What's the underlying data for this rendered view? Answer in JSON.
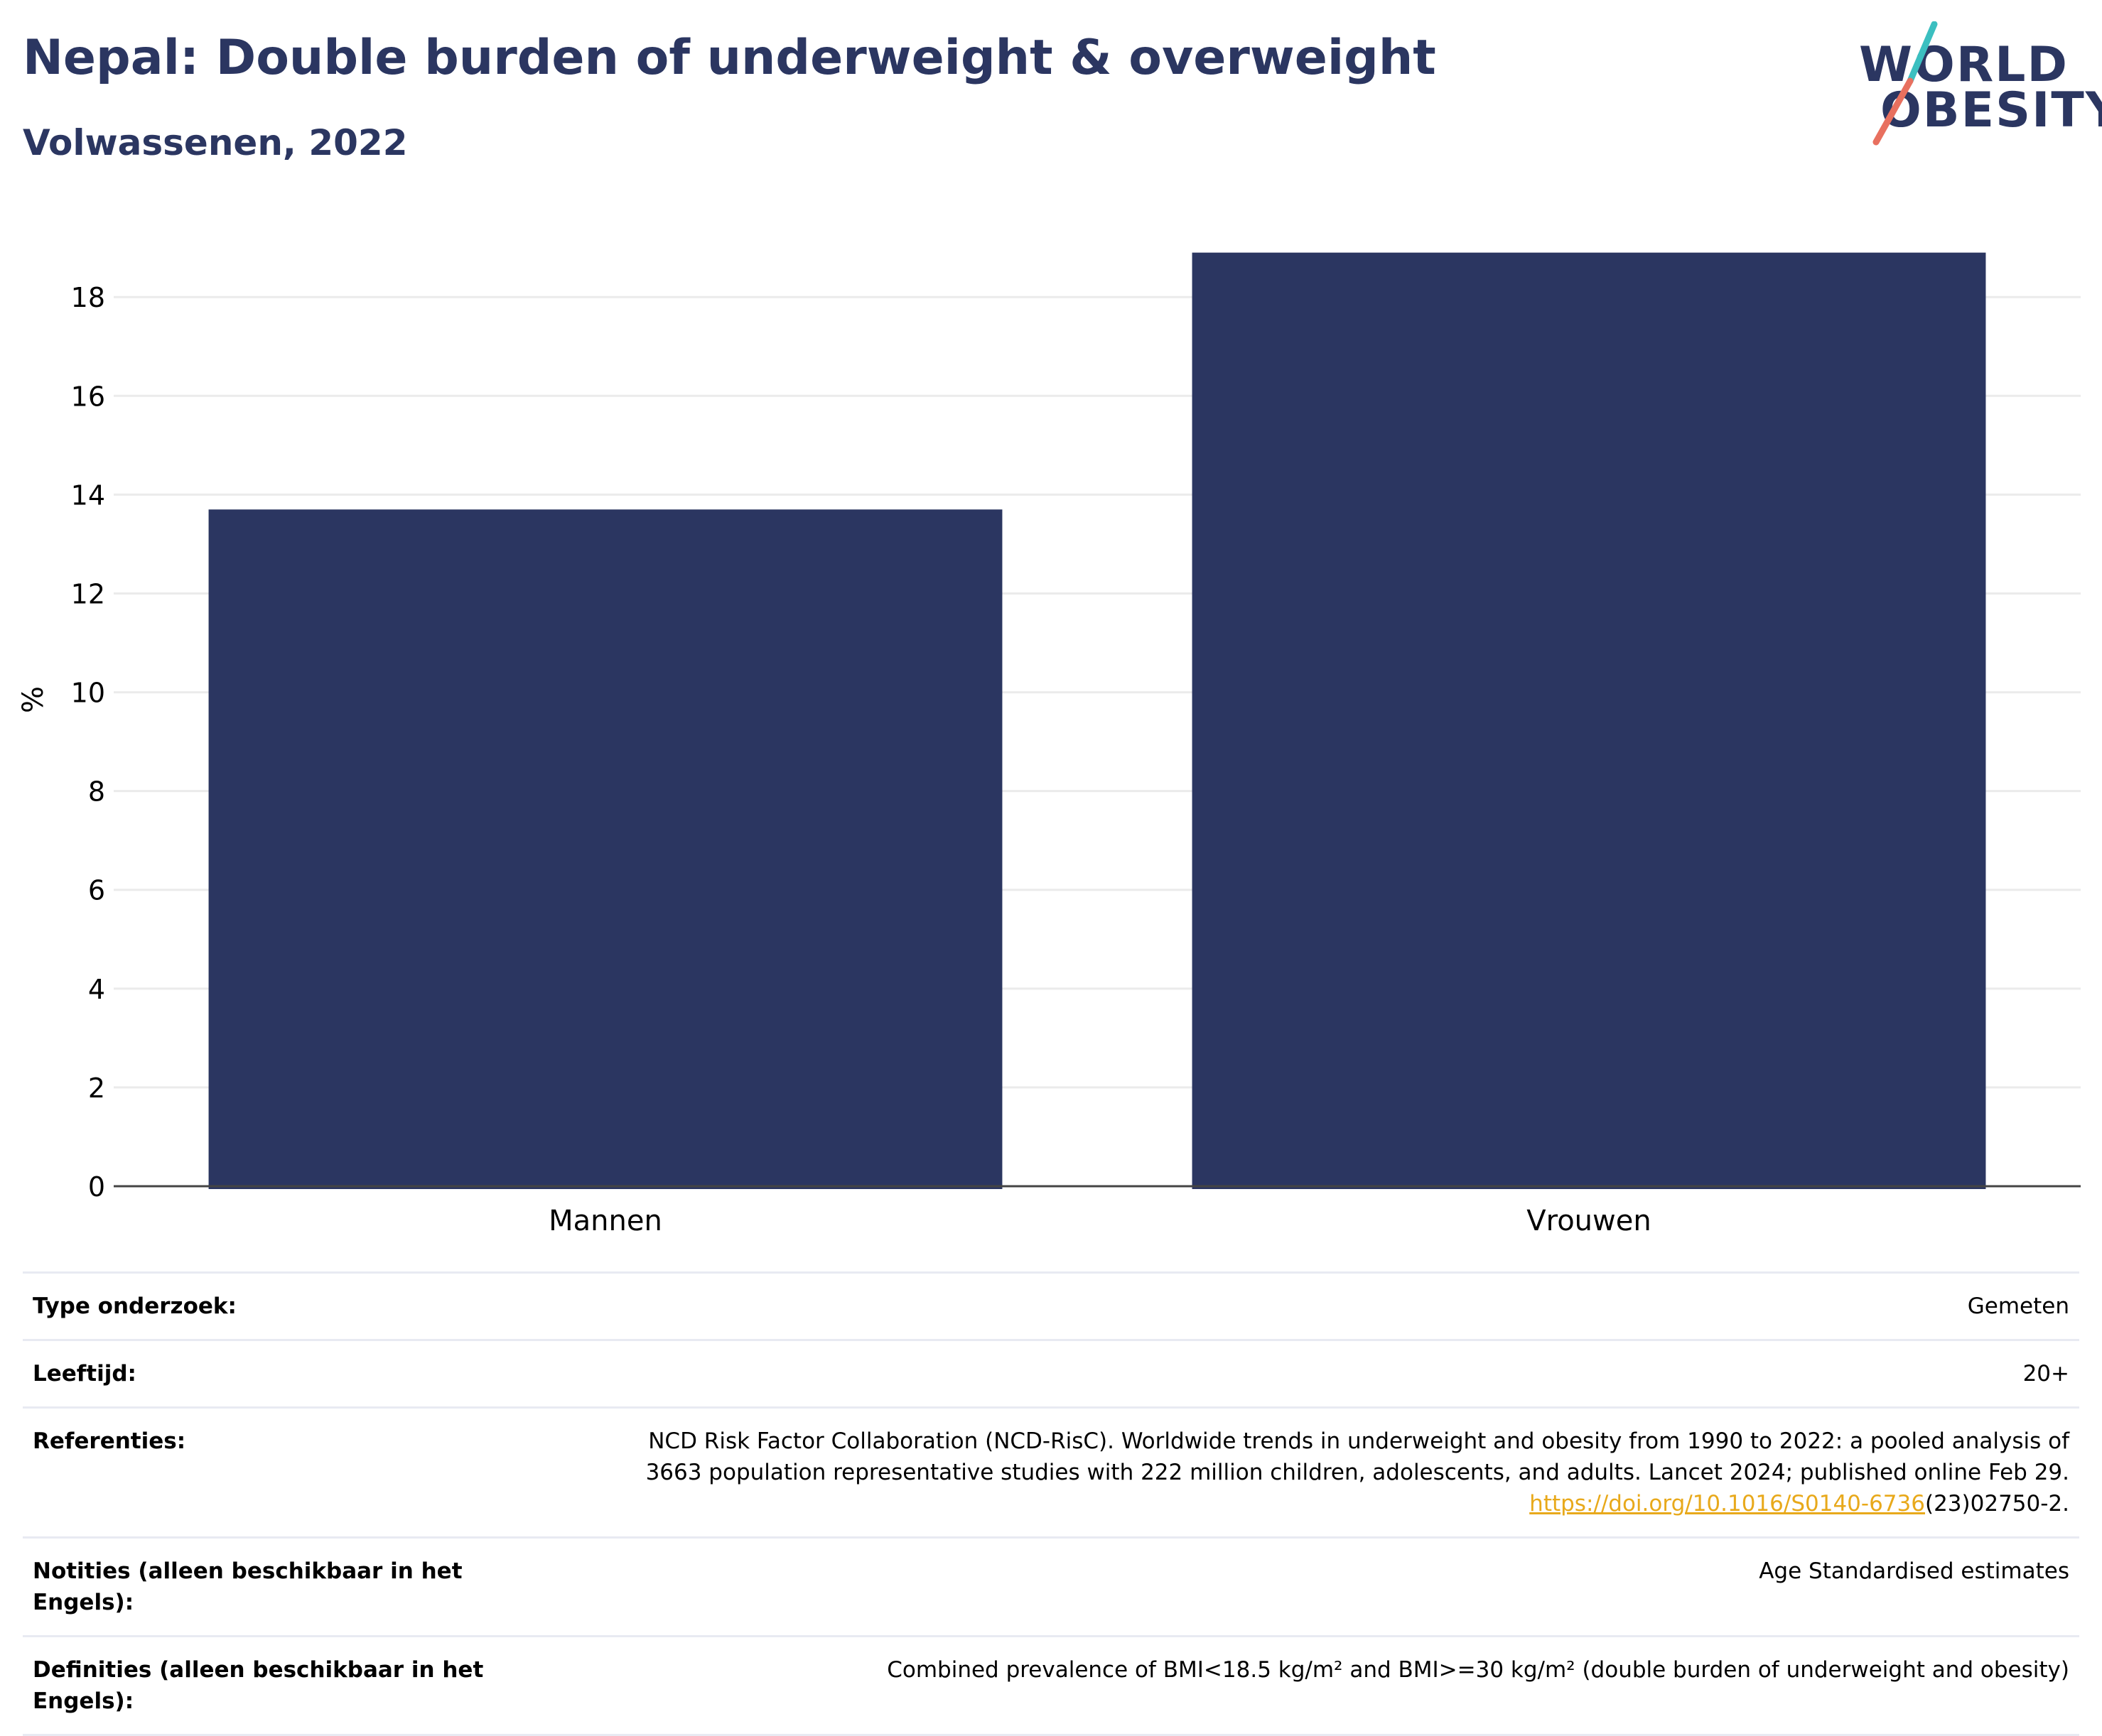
{
  "header": {
    "title": "Nepal: Double burden of underweight & overweight",
    "subtitle": "Volwassenen, 2022"
  },
  "logo": {
    "line1": "WORLD",
    "line2": "OBESITY",
    "accent_teal": "#3bbfc0",
    "accent_coral": "#e8705f"
  },
  "chart_data": {
    "type": "bar",
    "categories": [
      "Mannen",
      "Vrouwen"
    ],
    "values": [
      13.7,
      18.9
    ],
    "ylabel": "%",
    "xlabel": "",
    "ylim": [
      0,
      19.7
    ],
    "yticks": [
      0,
      2,
      4,
      6,
      8,
      10,
      12,
      14,
      16,
      18
    ],
    "grid": true,
    "bar_color": "#2b3661"
  },
  "info": {
    "rows": [
      {
        "label": "Type onderzoek:",
        "value": "Gemeten"
      },
      {
        "label": "Leeftijd:",
        "value": "20+"
      },
      {
        "label": "Referenties:",
        "value_line1": "NCD Risk Factor Collaboration (NCD-RisC). Worldwide trends in underweight and obesity from 1990 to 2022: a pooled analysis of",
        "value_line2": "3663 population representative studies with 222 million children, adolescents, and adults. Lancet 2024; published online Feb 29.",
        "link_text": "https://doi.org/10.1016/S0140-6736",
        "link_suffix": "(23)02750-2."
      },
      {
        "label": "Notities (alleen beschikbaar in het Engels):",
        "value": "Age Standardised estimates"
      },
      {
        "label": "Definities (alleen beschikbaar in het Engels):",
        "value": "Combined prevalence of BMI<18.5 kg/m² and BMI>=30 kg/m² (double burden of underweight and obesity)"
      }
    ]
  }
}
